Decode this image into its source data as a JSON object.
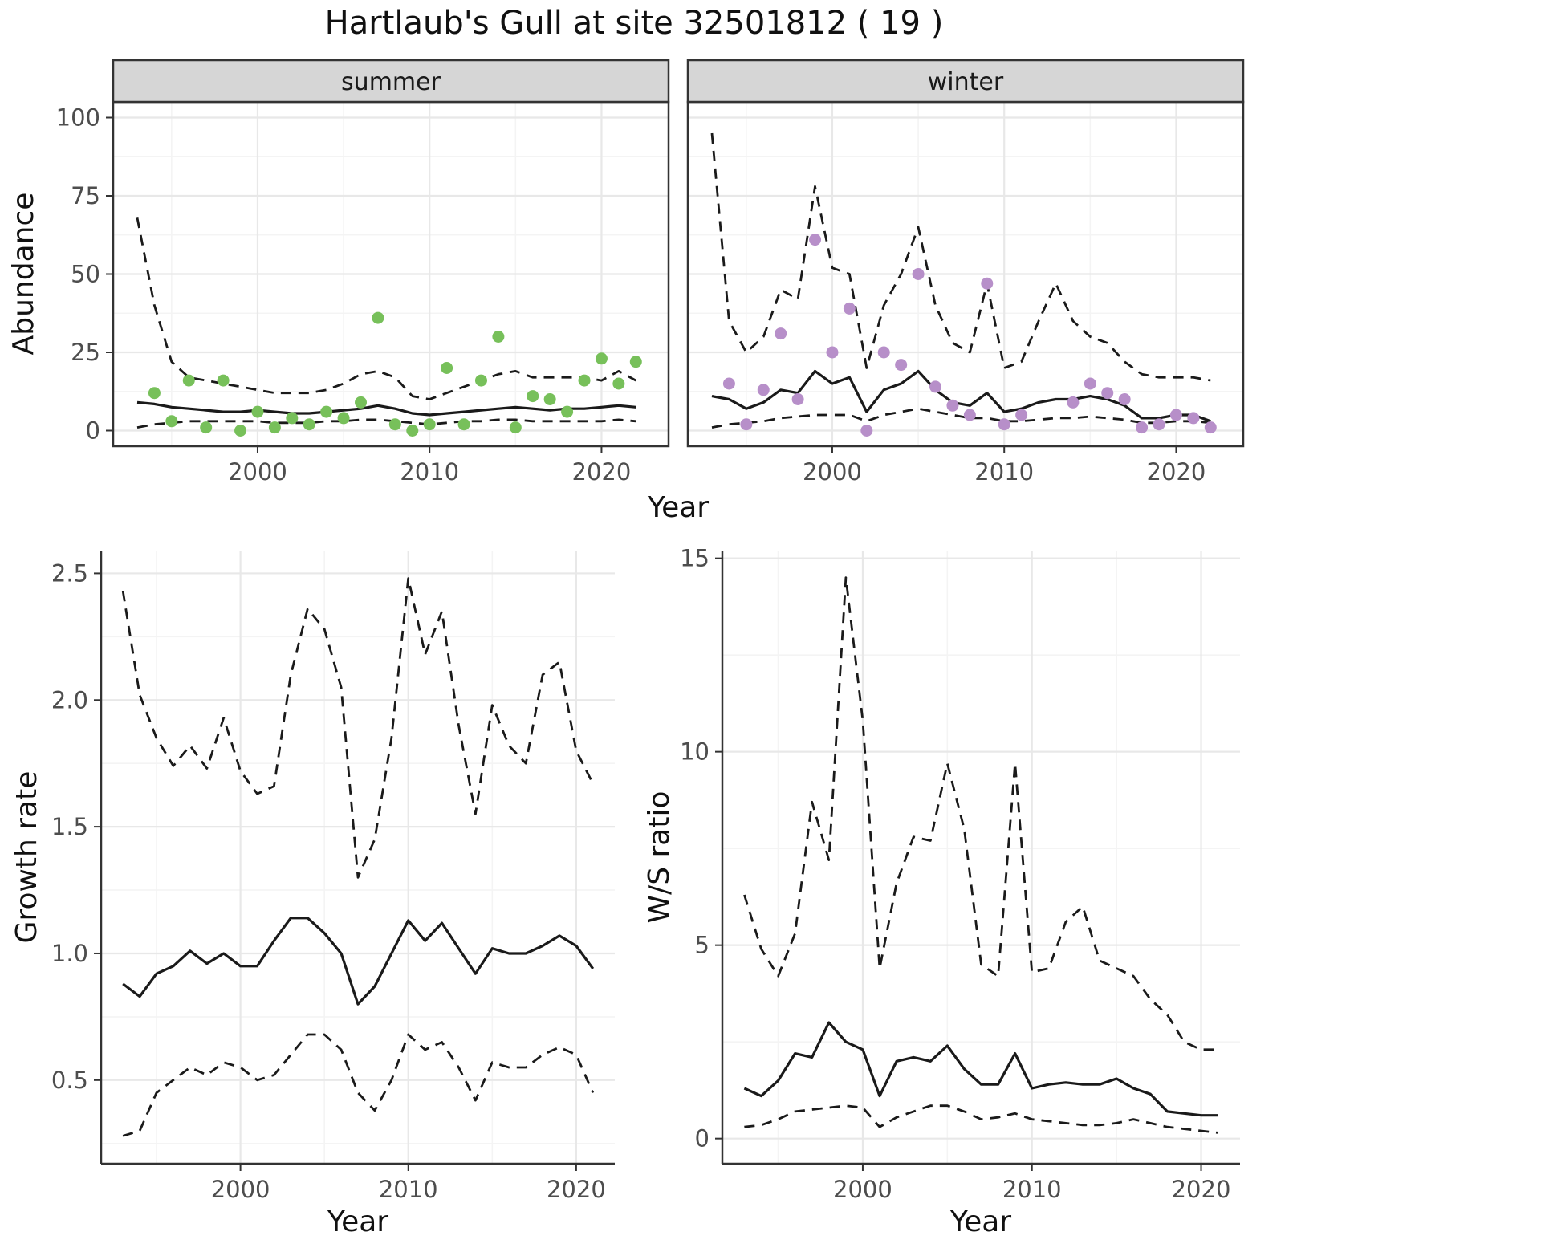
{
  "title": "Hartlaub's Gull at site 32501812 ( 19 )",
  "theme": {
    "summer_point_color": "#77c05a",
    "winter_point_color": "#b78fc9",
    "line_color": "#1a1a1a",
    "strip_bg": "#d6d6d6",
    "strip_text_color": "#1a1a1a",
    "grid_major_color": "#e8e8e8",
    "grid_minor_color": "#f4f4f4",
    "border_color": "#333333",
    "tick_text_color": "#4d4d4d"
  },
  "chart_data": [
    {
      "id": "abundance-by-season",
      "type": "scatter",
      "title": "",
      "xlabel": "Year",
      "ylabel": "Abundance",
      "xlim": [
        1991.6,
        2023.9
      ],
      "ylim": [
        -5,
        105
      ],
      "xticks": {
        "values": [
          2000,
          2010,
          2020
        ],
        "labels": [
          "2000",
          "2010",
          "2020"
        ]
      },
      "yticks": {
        "values": [
          0,
          25,
          50,
          75,
          100
        ],
        "labels": [
          "0",
          "25",
          "50",
          "75",
          "100"
        ]
      },
      "xminor": [
        1995,
        2005,
        2015
      ],
      "yminor": [
        12.5,
        37.5,
        62.5,
        87.5
      ],
      "line_years": [
        1993,
        1994,
        1995,
        1996,
        1997,
        1998,
        1999,
        2000,
        2001,
        2002,
        2003,
        2004,
        2005,
        2006,
        2007,
        2008,
        2009,
        2010,
        2011,
        2012,
        2013,
        2014,
        2015,
        2016,
        2017,
        2018,
        2019,
        2020,
        2021,
        2022
      ],
      "facets": [
        {
          "label": "summer",
          "obs_years": [
            1994,
            1995,
            1996,
            1997,
            1998,
            1999,
            2000,
            2001,
            2002,
            2003,
            2004,
            2005,
            2006,
            2007,
            2008,
            2009,
            2010,
            2011,
            2012,
            2013,
            2014,
            2015,
            2016,
            2017,
            2018,
            2019,
            2020,
            2021,
            2022
          ],
          "observed": [
            12,
            3,
            16,
            1,
            16,
            0,
            6,
            1,
            4,
            2,
            6,
            4,
            9,
            36,
            2,
            0,
            2,
            20,
            2,
            16,
            30,
            1,
            11,
            10,
            6,
            16,
            23,
            15,
            22
          ],
          "fit": [
            9,
            8.5,
            7.5,
            7,
            6.5,
            6,
            6,
            6.5,
            6,
            5.5,
            5.5,
            6,
            6.5,
            7,
            8,
            7,
            5.5,
            5,
            5.5,
            6,
            6.5,
            7,
            7.5,
            7,
            6.5,
            7,
            7,
            7.5,
            8,
            7.5
          ],
          "upper_ci": [
            68,
            40,
            22,
            17,
            16,
            15,
            14,
            13,
            12,
            12,
            12,
            13,
            15,
            18,
            19,
            17,
            11,
            10,
            12,
            14,
            16,
            18,
            19,
            17,
            17,
            17,
            17,
            16,
            19,
            16
          ],
          "lower_ci": [
            1,
            2,
            2.5,
            3,
            3,
            3,
            3,
            3,
            2.5,
            2.5,
            2.5,
            3,
            3,
            3.5,
            3.5,
            3,
            2.5,
            2,
            2.5,
            3,
            3,
            3.5,
            3.5,
            3,
            3,
            3,
            3,
            3,
            3.5,
            3
          ]
        },
        {
          "label": "winter",
          "obs_years": [
            1994,
            1995,
            1996,
            1997,
            1998,
            1999,
            2000,
            2001,
            2002,
            2003,
            2004,
            2005,
            2006,
            2007,
            2008,
            2009,
            2010,
            2011,
            2012,
            2013,
            2014,
            2015,
            2016,
            2017,
            2018,
            2019,
            2020,
            2021,
            2022
          ],
          "observed": [
            15,
            2,
            13,
            31,
            10,
            61,
            25,
            39,
            0,
            25,
            21,
            50,
            14,
            8,
            5,
            47,
            2,
            5,
            null,
            null,
            9,
            15,
            12,
            10,
            1,
            2,
            5,
            4,
            1
          ],
          "fit": [
            11,
            10,
            7,
            9,
            13,
            12,
            19,
            15,
            17,
            6,
            13,
            15,
            19,
            13,
            9,
            8,
            12,
            6,
            7,
            9,
            10,
            10,
            11,
            10,
            8,
            4,
            4,
            5,
            5,
            3
          ],
          "upper_ci": [
            95,
            35,
            25,
            30,
            45,
            42,
            78,
            52,
            50,
            20,
            40,
            50,
            65,
            40,
            28,
            25,
            47,
            20,
            22,
            35,
            47,
            35,
            30,
            28,
            22,
            18,
            17,
            17,
            17,
            16
          ],
          "lower_ci": [
            1,
            2,
            2.5,
            3,
            4,
            4.5,
            5,
            5,
            5,
            3,
            5,
            6,
            7,
            6,
            5,
            4,
            4,
            3,
            3,
            3.5,
            4,
            4,
            4.5,
            4,
            3.5,
            2.5,
            2.5,
            3,
            3,
            2.5
          ]
        }
      ]
    },
    {
      "id": "growth-rate",
      "type": "line",
      "title": "",
      "xlabel": "Year",
      "ylabel": "Growth rate",
      "xlim": [
        1991.7,
        2022.3
      ],
      "ylim": [
        0.17,
        2.59
      ],
      "xticks": {
        "values": [
          2000,
          2010,
          2020
        ],
        "labels": [
          "2000",
          "2010",
          "2020"
        ]
      },
      "yticks": {
        "values": [
          0.5,
          1.0,
          1.5,
          2.0,
          2.5
        ],
        "labels": [
          "0.5",
          "1.0",
          "1.5",
          "2.0",
          "2.5"
        ]
      },
      "xminor": [
        1995,
        2005,
        2015
      ],
      "yminor": [
        0.25,
        0.75,
        1.25,
        1.75,
        2.25
      ],
      "years": [
        1993,
        1994,
        1995,
        1996,
        1997,
        1998,
        1999,
        2000,
        2001,
        2002,
        2003,
        2004,
        2005,
        2006,
        2007,
        2008,
        2009,
        2010,
        2011,
        2012,
        2013,
        2014,
        2015,
        2016,
        2017,
        2018,
        2019,
        2020,
        2021
      ],
      "fit": [
        0.88,
        0.83,
        0.92,
        0.95,
        1.01,
        0.96,
        1.0,
        0.95,
        0.95,
        1.05,
        1.14,
        1.14,
        1.08,
        1.0,
        0.8,
        0.87,
        1.0,
        1.13,
        1.05,
        1.12,
        1.02,
        0.92,
        1.02,
        1.0,
        1.0,
        1.03,
        1.07,
        1.03,
        0.94
      ],
      "upper_ci": [
        2.43,
        2.02,
        1.85,
        1.74,
        1.82,
        1.73,
        1.93,
        1.72,
        1.63,
        1.66,
        2.1,
        2.36,
        2.28,
        2.05,
        1.3,
        1.45,
        1.85,
        2.48,
        2.18,
        2.35,
        1.9,
        1.55,
        1.98,
        1.82,
        1.75,
        2.1,
        2.15,
        1.8,
        1.67
      ],
      "lower_ci": [
        0.28,
        0.3,
        0.45,
        0.5,
        0.55,
        0.52,
        0.57,
        0.55,
        0.5,
        0.52,
        0.6,
        0.68,
        0.68,
        0.62,
        0.45,
        0.38,
        0.5,
        0.68,
        0.62,
        0.65,
        0.55,
        0.42,
        0.57,
        0.55,
        0.55,
        0.6,
        0.63,
        0.6,
        0.45
      ]
    },
    {
      "id": "winter-summer-ratio",
      "type": "line",
      "title": "",
      "xlabel": "Year",
      "ylabel": "W/S ratio",
      "xlim": [
        1991.7,
        2022.3
      ],
      "ylim": [
        -0.65,
        15.2
      ],
      "xticks": {
        "values": [
          2000,
          2010,
          2020
        ],
        "labels": [
          "2000",
          "2010",
          "2020"
        ]
      },
      "yticks": {
        "values": [
          0,
          5,
          10,
          15
        ],
        "labels": [
          "0",
          "5",
          "10",
          "15"
        ]
      },
      "xminor": [
        1995,
        2005,
        2015
      ],
      "yminor": [
        2.5,
        7.5,
        12.5
      ],
      "years": [
        1993,
        1994,
        1995,
        1996,
        1997,
        1998,
        1999,
        2000,
        2001,
        2002,
        2003,
        2004,
        2005,
        2006,
        2007,
        2008,
        2009,
        2010,
        2011,
        2012,
        2013,
        2014,
        2015,
        2016,
        2017,
        2018,
        2019,
        2020,
        2021
      ],
      "fit": [
        1.3,
        1.1,
        1.5,
        2.2,
        2.1,
        3.0,
        2.5,
        2.3,
        1.1,
        2.0,
        2.1,
        2.0,
        2.4,
        1.8,
        1.4,
        1.4,
        2.2,
        1.3,
        1.4,
        1.45,
        1.4,
        1.4,
        1.55,
        1.3,
        1.15,
        0.7,
        0.65,
        0.6,
        0.6
      ],
      "upper_ci": [
        6.3,
        4.9,
        4.2,
        5.3,
        8.7,
        7.2,
        14.5,
        10.8,
        4.4,
        6.6,
        7.8,
        7.7,
        9.7,
        8.0,
        4.5,
        4.2,
        9.7,
        4.3,
        4.4,
        5.6,
        6.0,
        4.6,
        4.4,
        4.2,
        3.6,
        3.2,
        2.5,
        2.3,
        2.3
      ],
      "lower_ci": [
        0.3,
        0.35,
        0.5,
        0.7,
        0.75,
        0.8,
        0.85,
        0.8,
        0.3,
        0.55,
        0.7,
        0.85,
        0.85,
        0.7,
        0.5,
        0.55,
        0.65,
        0.5,
        0.45,
        0.4,
        0.35,
        0.35,
        0.4,
        0.5,
        0.4,
        0.3,
        0.25,
        0.2,
        0.15
      ]
    }
  ]
}
